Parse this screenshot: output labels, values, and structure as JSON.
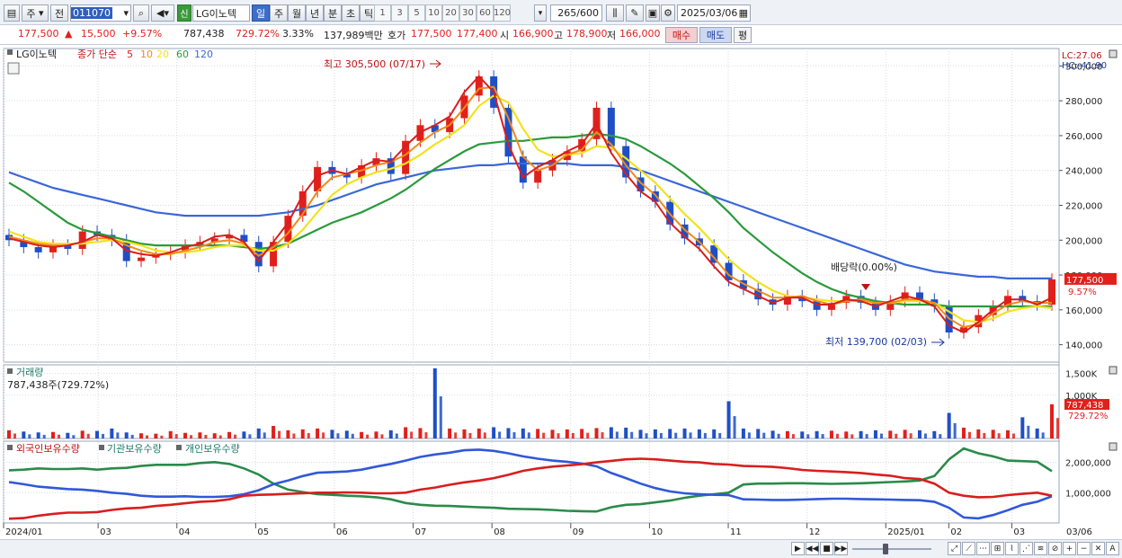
{
  "toolbar": {
    "period_type": "주",
    "prev_label": "전",
    "code": "011070",
    "name": "LG이노텍",
    "new_badge": "신",
    "periods": [
      "일",
      "주",
      "월",
      "년",
      "분",
      "초",
      "틱"
    ],
    "nums": [
      "1",
      "3",
      "5",
      "10",
      "20",
      "30",
      "60",
      "120"
    ],
    "count": "265",
    "count_max": "/600",
    "date": "2025/03/06"
  },
  "quote": {
    "price": "177,500",
    "arrow": "▲",
    "change": "15,500",
    "rate": "+9.57%",
    "volume": "787,438",
    "vol_rate": "729.72%",
    "turnover": "3.33%",
    "amount": "137,989백만",
    "hoga_label": "호가",
    "ask": "177,500",
    "bid": "177,400",
    "open_label": "시",
    "open": "166,900",
    "high_label": "고",
    "high": "178,900",
    "low_label": "저",
    "low": "166,000",
    "buy_label": "매수",
    "sell_label": "매도",
    "eval_label": "평"
  },
  "price_panel": {
    "legend_name": "LG이노텍",
    "legend_ma": "종가 단순",
    "ma_periods": [
      "5",
      "10",
      "20",
      "60",
      "120"
    ],
    "lc": "LC:27.06",
    "hc": "HC:-41.90",
    "last_price": "177,500",
    "last_rate": "9.57%",
    "max_label": "최고 305,500 (07/17)",
    "min_label": "최저 139,700 (02/03)",
    "div_label": "배당락(0.00%)",
    "y_ticks": [
      "300,000",
      "280,000",
      "260,000",
      "240,000",
      "220,000",
      "200,000",
      "180,000",
      "160,000",
      "140,000"
    ]
  },
  "volume_panel": {
    "title": "거래량",
    "value": "787,438주(729.72%)",
    "y_ticks": [
      "1,500K",
      "1,000K"
    ],
    "last_value": "787,438",
    "last_rate": "729.72%"
  },
  "holdings_panel": {
    "s1": "외국인보유수량",
    "s2": "기관보유수량",
    "s3": "개인보유수량",
    "y_ticks": [
      "2,000,000",
      "1,000,000"
    ]
  },
  "x_labels": [
    "2024/01",
    "03",
    "04",
    "05",
    "06",
    "07",
    "08",
    "09",
    "10",
    "11",
    "12",
    "2025/01",
    "02",
    "03",
    "03/06"
  ],
  "colors": {
    "up": "#e0201b",
    "down": "#1f4fc6",
    "ma5": "#d81e1e",
    "ma10": "#f08a1a",
    "ma20": "#f2e21d",
    "ma60": "#2a9a3a",
    "ma120": "#3a66d8"
  },
  "chart_data": {
    "type": "candlestick",
    "y_range": [
      130000,
      310000
    ],
    "close": [
      200000,
      196000,
      193000,
      197000,
      195000,
      205000,
      203000,
      200000,
      188000,
      190000,
      192000,
      193000,
      197000,
      199000,
      201000,
      203000,
      199000,
      185000,
      199000,
      214000,
      228000,
      242000,
      238000,
      236000,
      243000,
      247000,
      238000,
      257000,
      266000,
      262000,
      270000,
      283000,
      294000,
      276000,
      248000,
      233000,
      240000,
      246000,
      251000,
      258000,
      276000,
      254000,
      236000,
      228000,
      222000,
      209000,
      201000,
      197000,
      187000,
      177000,
      172000,
      166000,
      163000,
      168000,
      165000,
      160000,
      164000,
      168000,
      164000,
      160000,
      165000,
      170000,
      166000,
      162000,
      147000,
      150000,
      157000,
      162000,
      168000,
      165000,
      163000,
      177500
    ],
    "ma5": [
      201000,
      199000,
      197000,
      196000,
      197000,
      199000,
      203000,
      201000,
      194000,
      192000,
      191000,
      193000,
      196000,
      198000,
      202000,
      203000,
      199000,
      188000,
      199000,
      210000,
      226000,
      237000,
      240000,
      238000,
      242000,
      246000,
      245000,
      254000,
      262000,
      266000,
      271000,
      285000,
      294000,
      285000,
      255000,
      236000,
      242000,
      246000,
      251000,
      255000,
      267000,
      250000,
      238000,
      228000,
      222000,
      210000,
      202000,
      195000,
      185000,
      176000,
      172000,
      168000,
      164000,
      167000,
      167000,
      163000,
      163000,
      166000,
      165000,
      162000,
      165000,
      168000,
      166000,
      162000,
      151000,
      147000,
      153000,
      160000,
      166000,
      166000,
      163000,
      167000
    ],
    "ma10": [
      202000,
      200000,
      198000,
      197000,
      197000,
      199000,
      201000,
      201000,
      197000,
      194000,
      192000,
      192000,
      194000,
      196000,
      199000,
      200000,
      198000,
      191000,
      196000,
      204000,
      215000,
      228000,
      236000,
      238000,
      240000,
      243000,
      245000,
      249000,
      256000,
      262000,
      266000,
      276000,
      287000,
      288000,
      270000,
      248000,
      240000,
      243000,
      249000,
      252000,
      262000,
      255000,
      243000,
      233000,
      226000,
      215000,
      206000,
      199000,
      190000,
      180000,
      175000,
      171000,
      167000,
      167000,
      168000,
      165000,
      163000,
      165000,
      166000,
      164000,
      164000,
      166000,
      166000,
      164000,
      155000,
      150000,
      152000,
      158000,
      163000,
      165000,
      164000,
      164000
    ],
    "ma20": [
      205000,
      202000,
      199000,
      198000,
      198000,
      198000,
      199000,
      200000,
      199000,
      197000,
      194000,
      193000,
      193000,
      194000,
      196000,
      197000,
      197000,
      194000,
      194000,
      198000,
      206000,
      216000,
      226000,
      232000,
      236000,
      239000,
      241000,
      244000,
      249000,
      255000,
      260000,
      266000,
      277000,
      283000,
      279000,
      264000,
      252000,
      248000,
      249000,
      250000,
      254000,
      253000,
      247000,
      240000,
      233000,
      224000,
      215000,
      207000,
      198000,
      189000,
      182000,
      176000,
      171000,
      168000,
      167000,
      166000,
      165000,
      165000,
      165000,
      164000,
      164000,
      165000,
      165000,
      164000,
      159000,
      154000,
      153000,
      155000,
      159000,
      161000,
      162000,
      161000
    ],
    "ma60": [
      233000,
      228000,
      222000,
      216000,
      210000,
      206000,
      204000,
      202000,
      200000,
      198000,
      197000,
      197000,
      197000,
      197000,
      197000,
      197000,
      196000,
      195000,
      196000,
      198000,
      202000,
      206000,
      210000,
      213000,
      216000,
      220000,
      224000,
      229000,
      235000,
      241000,
      246000,
      251000,
      255000,
      256000,
      257000,
      257000,
      258000,
      259000,
      259000,
      260000,
      261000,
      260000,
      258000,
      254000,
      249000,
      244000,
      238000,
      231000,
      224000,
      216000,
      207000,
      200000,
      193000,
      187000,
      181000,
      176000,
      172000,
      169000,
      167000,
      165000,
      164000,
      163000,
      163000,
      163000,
      162000,
      162000,
      162000,
      162000,
      162000,
      162000,
      162000,
      162000
    ],
    "ma120": [
      239000,
      236000,
      233000,
      230000,
      228000,
      226000,
      224000,
      222000,
      220000,
      218000,
      216000,
      215000,
      214000,
      214000,
      214000,
      214000,
      214000,
      214000,
      215000,
      216000,
      218000,
      220000,
      223000,
      226000,
      229000,
      232000,
      234000,
      236000,
      238000,
      240000,
      241000,
      242000,
      243000,
      243000,
      244000,
      244000,
      244000,
      244000,
      244000,
      243000,
      243000,
      243000,
      242000,
      240000,
      237000,
      234000,
      231000,
      228000,
      225000,
      222000,
      219000,
      216000,
      213000,
      210000,
      207000,
      204000,
      201000,
      198000,
      195000,
      192000,
      189000,
      186000,
      184000,
      182000,
      181000,
      180000,
      179000,
      179000,
      178000,
      178000,
      178000,
      178000
    ],
    "volume_k": [
      190,
      160,
      140,
      150,
      130,
      180,
      175,
      230,
      140,
      120,
      110,
      170,
      130,
      140,
      120,
      150,
      160,
      230,
      290,
      190,
      210,
      230,
      200,
      180,
      150,
      160,
      190,
      260,
      240,
      1620,
      230,
      210,
      230,
      260,
      240,
      230,
      220,
      200,
      210,
      220,
      240,
      260,
      250,
      200,
      210,
      220,
      230,
      210,
      210,
      860,
      230,
      220,
      180,
      170,
      160,
      170,
      180,
      160,
      170,
      190,
      180,
      200,
      190,
      170,
      590,
      250,
      210,
      200,
      190,
      490,
      230,
      787.4
    ],
    "foreign": [
      1740000,
      1760000,
      1800000,
      1780000,
      1780000,
      1800000,
      1760000,
      1800000,
      1820000,
      1880000,
      1920000,
      1920000,
      1920000,
      1980000,
      2010000,
      1950000,
      1800000,
      1600000,
      1300000,
      1100000,
      1020000,
      950000,
      930000,
      900000,
      880000,
      850000,
      780000,
      660000,
      600000,
      570000,
      560000,
      540000,
      520000,
      500000,
      470000,
      460000,
      450000,
      430000,
      400000,
      390000,
      380000,
      520000,
      600000,
      620000,
      680000,
      740000,
      830000,
      900000,
      950000,
      1000000,
      1270000,
      1300000,
      1300000,
      1310000,
      1310000,
      1300000,
      1290000,
      1300000,
      1310000,
      1330000,
      1350000,
      1370000,
      1400000,
      1550000,
      2100000,
      2460000,
      2300000,
      2200000,
      2060000,
      2040000,
      2020000,
      1710000
    ],
    "institution": [
      1350000,
      1280000,
      1200000,
      1160000,
      1120000,
      1100000,
      1060000,
      1000000,
      960000,
      900000,
      870000,
      870000,
      880000,
      860000,
      860000,
      880000,
      950000,
      1080000,
      1280000,
      1400000,
      1550000,
      1660000,
      1680000,
      1700000,
      1760000,
      1860000,
      1950000,
      2060000,
      2180000,
      2260000,
      2320000,
      2400000,
      2420000,
      2380000,
      2300000,
      2200000,
      2120000,
      2060000,
      2020000,
      1960000,
      1870000,
      1650000,
      1480000,
      1300000,
      1150000,
      1040000,
      980000,
      950000,
      930000,
      920000,
      780000,
      770000,
      760000,
      760000,
      770000,
      790000,
      800000,
      800000,
      790000,
      780000,
      770000,
      760000,
      750000,
      700000,
      500000,
      180000,
      150000,
      260000,
      420000,
      600000,
      700000,
      880000
    ],
    "individual": [
      140000,
      160000,
      240000,
      300000,
      340000,
      340000,
      360000,
      430000,
      480000,
      500000,
      560000,
      600000,
      650000,
      700000,
      720000,
      780000,
      900000,
      930000,
      940000,
      960000,
      980000,
      1000000,
      1000000,
      1010000,
      1000000,
      980000,
      980000,
      1000000,
      1100000,
      1170000,
      1260000,
      1340000,
      1400000,
      1480000,
      1590000,
      1720000,
      1800000,
      1860000,
      1900000,
      1940000,
      2000000,
      2050000,
      2100000,
      2120000,
      2100000,
      2060000,
      2020000,
      2000000,
      1950000,
      1930000,
      1880000,
      1870000,
      1850000,
      1810000,
      1750000,
      1720000,
      1700000,
      1680000,
      1650000,
      1600000,
      1560000,
      1480000,
      1450000,
      1300000,
      1000000,
      900000,
      850000,
      860000,
      920000,
      960000,
      1000000,
      900000
    ]
  }
}
